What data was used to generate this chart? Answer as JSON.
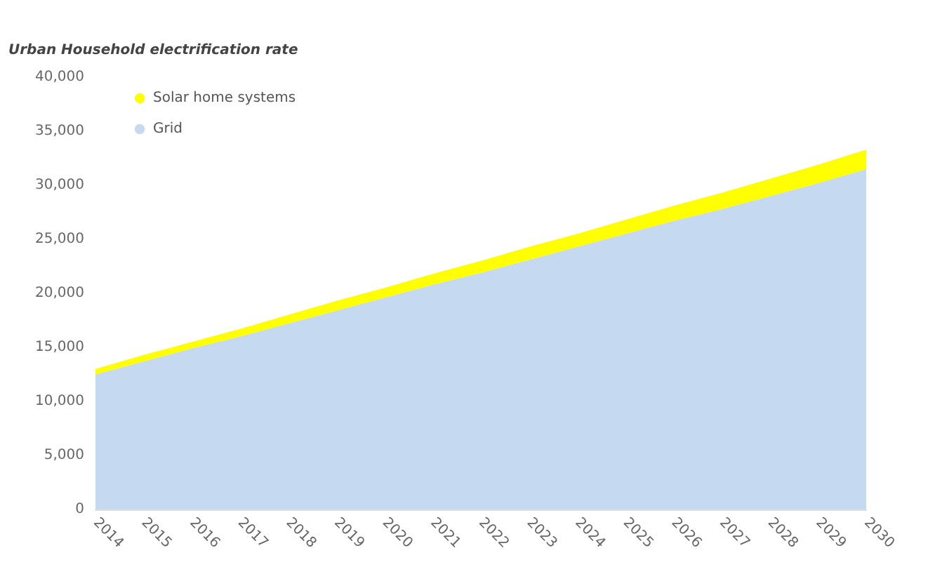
{
  "chart_data": {
    "type": "area",
    "stacked": true,
    "ylabel": "Urban Household electrification rate",
    "categories": [
      "2014",
      "2015",
      "2016",
      "2017",
      "2018",
      "2019",
      "2020",
      "2021",
      "2022",
      "2023",
      "2024",
      "2025",
      "2026",
      "2027",
      "2028",
      "2029",
      "2030"
    ],
    "series": [
      {
        "name": "Grid",
        "color": "#c5d9f1",
        "values": [
          12500,
          13700,
          14900,
          16000,
          17200,
          18400,
          19600,
          20800,
          21900,
          23100,
          24300,
          25500,
          26700,
          27800,
          29000,
          30200,
          31500
        ]
      },
      {
        "name": "Solar home systems",
        "color": "#ffff00",
        "values": [
          500,
          600,
          600,
          700,
          800,
          900,
          900,
          1000,
          1100,
          1200,
          1200,
          1300,
          1400,
          1500,
          1600,
          1700,
          1800
        ]
      }
    ],
    "ylim": [
      0,
      40000
    ],
    "yticks": [
      0,
      {
        "value": 5000,
        "label": "5,000"
      },
      {
        "value": 10000,
        "label": "10,000"
      },
      {
        "value": 15000,
        "label": "15,000"
      },
      {
        "value": 20000,
        "label": "20,000"
      },
      {
        "value": 25000,
        "label": "25,000"
      },
      {
        "value": 30000,
        "label": "30,000"
      },
      {
        "value": 35000,
        "label": "35,000"
      },
      {
        "value": 40000,
        "label": "40,000"
      }
    ],
    "grid": false,
    "legend": "top left",
    "marker": "none"
  }
}
